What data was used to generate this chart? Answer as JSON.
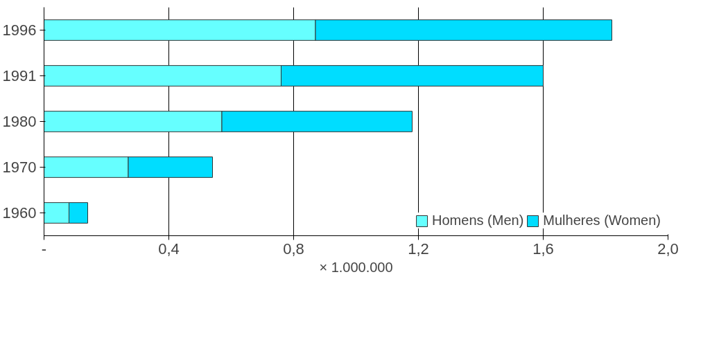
{
  "chart_data": {
    "type": "bar",
    "orientation": "horizontal",
    "stacked": true,
    "categories": [
      "1996",
      "1991",
      "1980",
      "1970",
      "1960"
    ],
    "series": [
      {
        "name": "Homens (Men)",
        "color": "#66ffff",
        "values": [
          0.87,
          0.76,
          0.57,
          0.27,
          0.08
        ]
      },
      {
        "name": "Mulheres (Women)",
        "color": "#00ddff",
        "values": [
          0.95,
          0.84,
          0.61,
          0.27,
          0.06
        ]
      }
    ],
    "xlabel": "× 1.000.000",
    "xlim": [
      0,
      2.0
    ],
    "xticks": [
      {
        "value": 0,
        "label": "-"
      },
      {
        "value": 0.4,
        "label": "0,4"
      },
      {
        "value": 0.8,
        "label": "0,8"
      },
      {
        "value": 1.2,
        "label": "1,2"
      },
      {
        "value": 1.6,
        "label": "1,6"
      },
      {
        "value": 2.0,
        "label": "2,0"
      }
    ],
    "grid": "x",
    "legend": "bottom"
  }
}
